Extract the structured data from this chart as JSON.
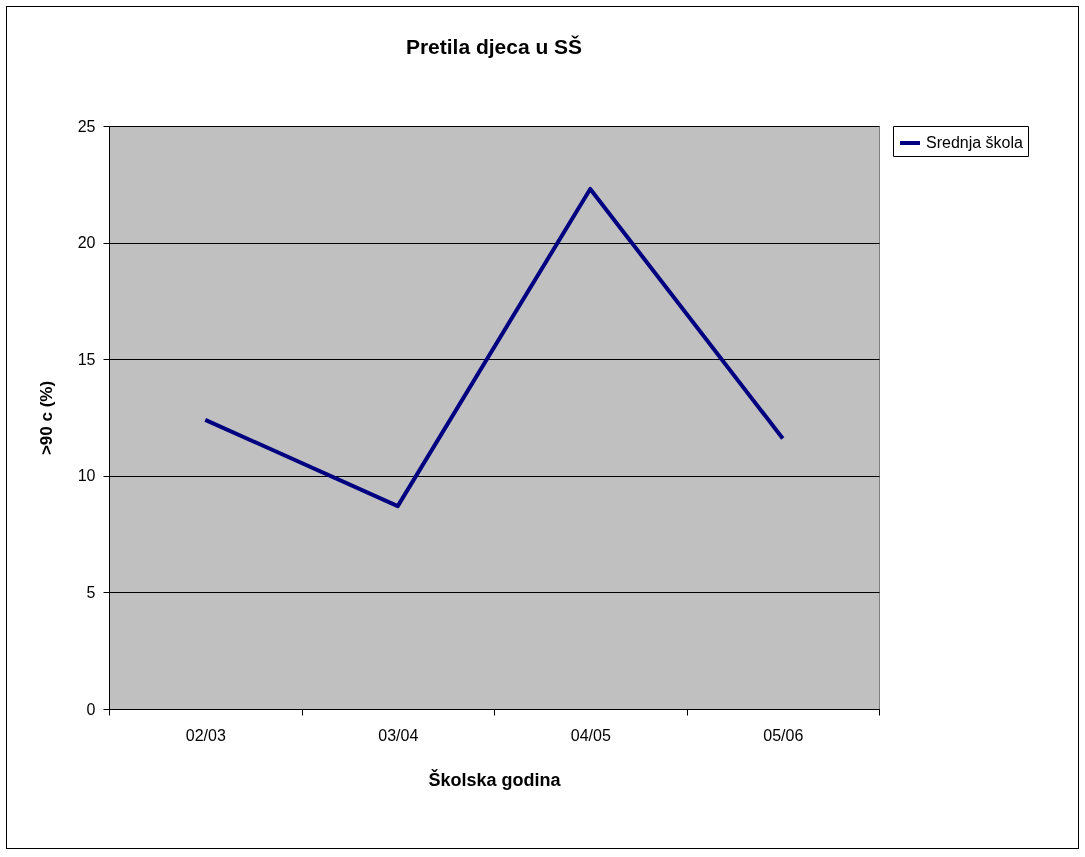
{
  "chart_data": {
    "type": "line",
    "title": "Pretila djeca u SŠ",
    "xlabel": "Školska godina",
    "ylabel": ">90 c (%)",
    "categories": [
      "02/03",
      "03/04",
      "04/05",
      "05/06"
    ],
    "series": [
      {
        "name": "Srednja škola",
        "color": "#000080",
        "values": [
          12.4,
          8.7,
          22.3,
          11.6
        ]
      }
    ],
    "ylim": [
      0,
      25
    ],
    "yticks": [
      0,
      5,
      10,
      15,
      20,
      25
    ],
    "grid": "y",
    "legend": "right",
    "marker": "none",
    "line_style": "solid"
  }
}
